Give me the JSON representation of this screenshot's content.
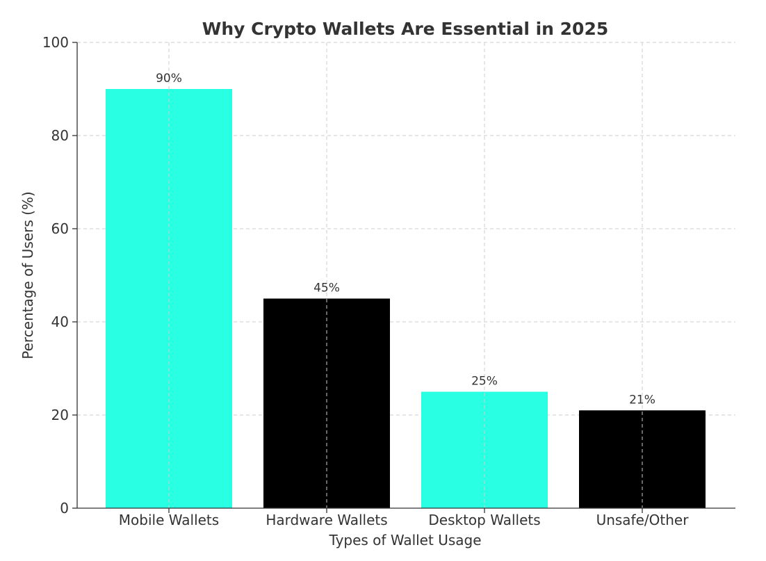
{
  "chart_data": {
    "type": "bar",
    "title": "Why Crypto Wallets Are Essential in 2025",
    "xlabel": "Types of Wallet Usage",
    "ylabel": "Percentage of Users (%)",
    "categories": [
      "Mobile Wallets",
      "Hardware Wallets",
      "Desktop Wallets",
      "Unsafe/Other"
    ],
    "values": [
      90,
      45,
      25,
      21
    ],
    "data_labels": [
      "90%",
      "45%",
      "25%",
      "21%"
    ],
    "bar_colors": [
      "#29FFE3",
      "#000000",
      "#29FFE3",
      "#000000"
    ],
    "ylim": [
      0,
      100
    ],
    "yticks": [
      0,
      20,
      40,
      60,
      80,
      100
    ],
    "grid": true,
    "legend": "none"
  }
}
